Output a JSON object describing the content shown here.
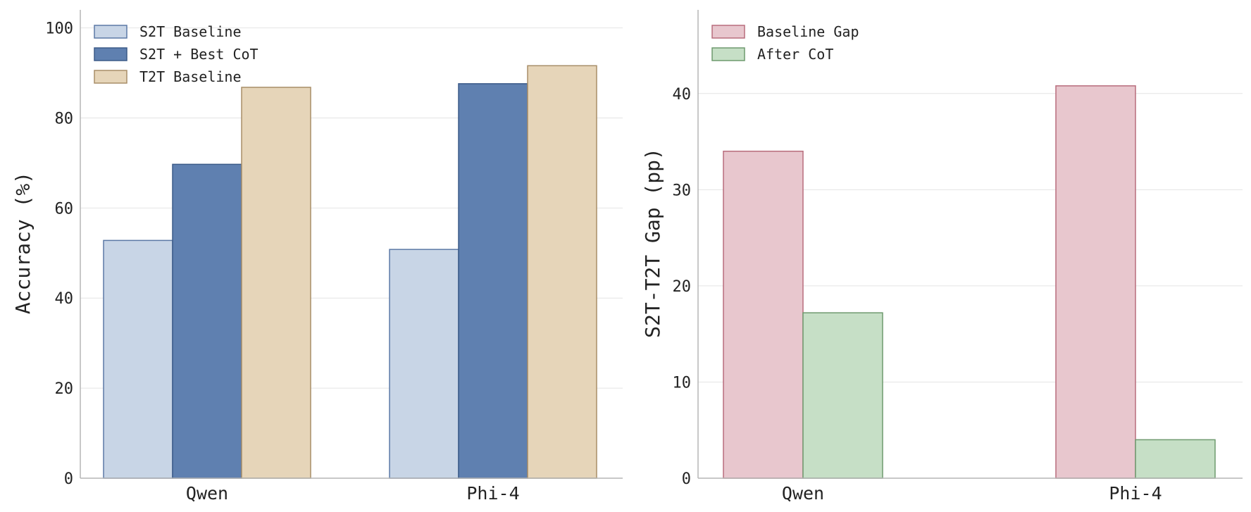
{
  "charts": [
    {
      "type": "bar",
      "categories": [
        "Qwen",
        "Phi-4"
      ],
      "series": [
        {
          "name": "S2T Baseline",
          "values": [
            52.8,
            50.8
          ],
          "fill": "#c8d5e6",
          "stroke": "#5c79a6"
        },
        {
          "name": "S2T + Best CoT",
          "values": [
            69.7,
            87.6
          ],
          "fill": "#5f80b0",
          "stroke": "#3b5a88"
        },
        {
          "name": "T2T Baseline",
          "values": [
            86.8,
            91.6
          ],
          "fill": "#e6d5b9",
          "stroke": "#a88e68"
        }
      ],
      "ylabel": "Accuracy (%)",
      "xlabel": "",
      "ylim": [
        0,
        104
      ],
      "yticks": [
        0,
        20,
        40,
        60,
        80,
        100
      ],
      "grid": true,
      "legend": "top-left"
    },
    {
      "type": "bar",
      "categories": [
        "Qwen",
        "Phi-4"
      ],
      "series": [
        {
          "name": "Baseline Gap",
          "values": [
            34.0,
            40.8
          ],
          "fill": "#e8c7ce",
          "stroke": "#b86d7d"
        },
        {
          "name": "After CoT",
          "values": [
            17.2,
            4.0
          ],
          "fill": "#c6dfc6",
          "stroke": "#6e9a6e"
        }
      ],
      "ylabel": "S2T-T2T Gap (pp)",
      "xlabel": "",
      "ylim": [
        0,
        48.7
      ],
      "yticks": [
        0,
        10,
        20,
        30,
        40
      ],
      "grid": true,
      "legend": "top-left"
    }
  ]
}
